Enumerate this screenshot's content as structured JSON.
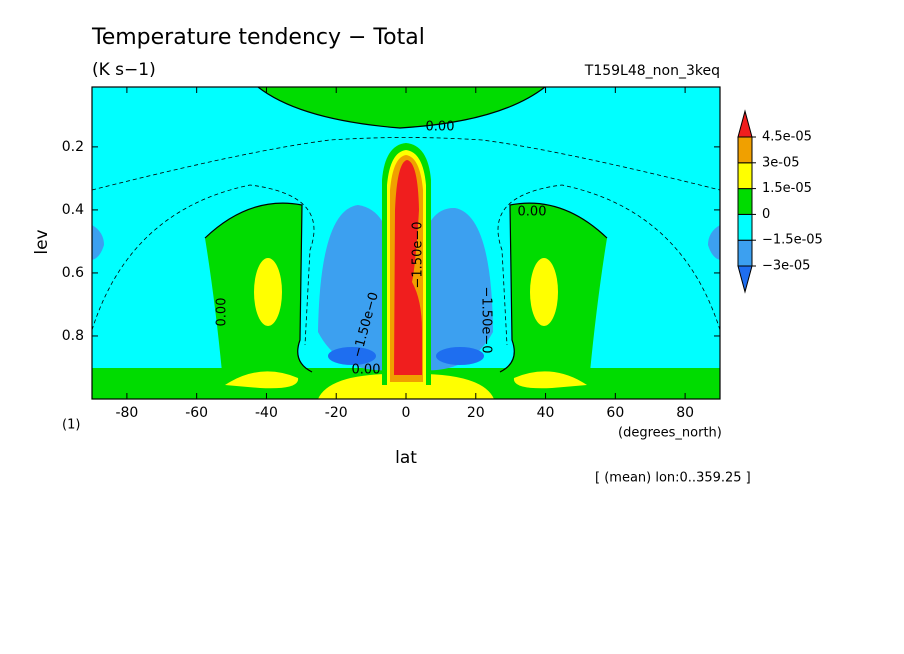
{
  "chart_data": {
    "type": "contour",
    "title": "Temperature tendency − Total",
    "subtitle": "(K s−1)",
    "run_label": "T159L48_non_3keq",
    "x_label": "lat",
    "x_units": "(degrees_north)",
    "y_label": "lev",
    "panel_label": "(1)",
    "footnote": "[ (mean) lon:0..359.25 ]",
    "xlim": [
      -90,
      90
    ],
    "xticks": [
      -80,
      -60,
      -40,
      -20,
      0,
      20,
      40,
      60,
      80
    ],
    "ylim": [
      0.01,
      1
    ],
    "y_reversed": true,
    "yticks": [
      0.2,
      0.4,
      0.6,
      0.8
    ],
    "colorbar": {
      "levels": [
        {
          "value": -3e-05,
          "label": "−3e-05"
        },
        {
          "value": -1.5e-05,
          "label": "−1.5e-05"
        },
        0,
        {
          "value": 1.5e-05,
          "label": "1.5e-05"
        },
        {
          "value": 3e-05,
          "label": "3e-05"
        },
        {
          "value": 4.5e-05,
          "label": "4.5e-05"
        }
      ],
      "colors": [
        "#1e6ef0",
        "#3ca0f0",
        "#00ffff",
        "#00dc00",
        "#ffff00",
        "#f0a000",
        "#f01e1e"
      ]
    },
    "contour_labels": [
      "0.00",
      "0.00",
      "0.00",
      "0.00",
      "−1.50e−0",
      "−1.50e−0",
      "−1.50e−0"
    ]
  }
}
